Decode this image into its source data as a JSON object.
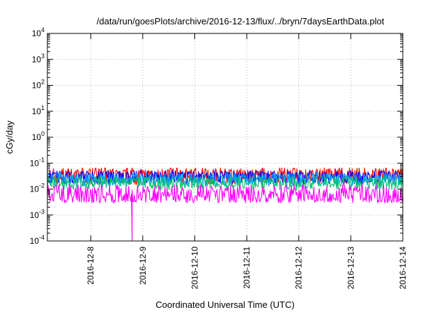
{
  "chart_data": {
    "type": "line",
    "title": "/data/run/goesPlots/archive/2016-12-13/flux/../bryn/7daysEarthData.plot",
    "xlabel": "Coordinated Universal Time (UTC)",
    "ylabel": "cGy/day",
    "yscale": "log",
    "ylim": [
      0.0001,
      10000
    ],
    "xlim": [
      "2016-12-07T04:00",
      "2016-12-14T00:00"
    ],
    "grid": true,
    "legend": "none",
    "x_ticks": [
      "2016-12-8",
      "2016-12-9",
      "2016-12-10",
      "2016-12-11",
      "2016-12-12",
      "2016-12-13",
      "2016-12-14"
    ],
    "y_ticks": [
      {
        "base": "10",
        "exp": "-4"
      },
      {
        "base": "10",
        "exp": "-3"
      },
      {
        "base": "10",
        "exp": "-2"
      },
      {
        "base": "10",
        "exp": "-1"
      },
      {
        "base": "10",
        "exp": "0"
      },
      {
        "base": "10",
        "exp": "1"
      },
      {
        "base": "10",
        "exp": "2"
      },
      {
        "base": "10",
        "exp": "3"
      },
      {
        "base": "10",
        "exp": "4"
      }
    ],
    "series": [
      {
        "color": "#ff0000",
        "typical": 0.035,
        "peak": 0.065,
        "low": 0.015
      },
      {
        "color": "#0000ff",
        "typical": 0.03,
        "peak": 0.05,
        "low": 0.015
      },
      {
        "color": "#00a0ff",
        "typical": 0.025,
        "peak": 0.04,
        "low": 0.012
      },
      {
        "color": "#00c070",
        "typical": 0.018,
        "peak": 0.03,
        "low": 0.009
      },
      {
        "color": "#ff00ff",
        "typical": 0.006,
        "peak": 0.015,
        "low": 0.003,
        "dropout": {
          "x": "2016-12-08T19:00",
          "y": 0.0001
        }
      }
    ]
  }
}
